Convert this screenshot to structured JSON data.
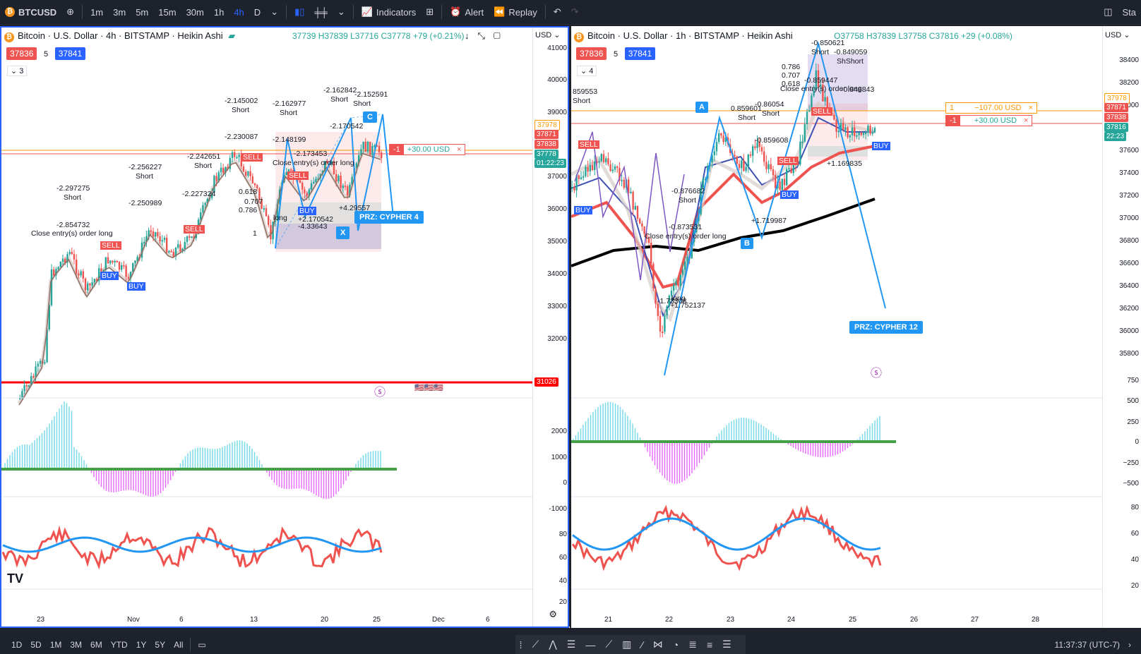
{
  "topbar": {
    "symbol": "BTCUSD",
    "intervals": [
      "1m",
      "3m",
      "5m",
      "15m",
      "30m",
      "1h",
      "4h",
      "D"
    ],
    "active_interval": "4h",
    "indicators_label": "Indicators",
    "alert_label": "Alert",
    "replay_label": "Replay",
    "right_label": "Sta"
  },
  "left_chart": {
    "title": "Bitcoin · U.S. Dollar · 4h · BITSTAMP · Heikin Ashi",
    "ohlc": "37739 H37839 L37716 C37778 +79 (+0.21%)",
    "sell_price": "37836",
    "spread": "5",
    "buy_price": "37841",
    "indicator_count": "3",
    "currency": "USD",
    "price_ticks": [
      "41000",
      "40000",
      "39000",
      "37000",
      "36000",
      "35000",
      "34000",
      "33000",
      "32000"
    ],
    "price_tag_a": "37978",
    "price_tag_b": "37871",
    "price_tag_c": "37838",
    "price_tag_last": "37778",
    "price_tag_time": "01:22:23",
    "support_tag": "31026",
    "order_qty": "-1",
    "order_pnl": "+30.00 USD",
    "prz": "PRZ: CYPHER 4",
    "macd_ticks": [
      "2000",
      "1000",
      "0",
      "-1000"
    ],
    "rsi_ticks": [
      "80",
      "60",
      "40",
      "20"
    ],
    "x_labels": [
      "23",
      "Nov",
      "6",
      "13",
      "20",
      "25",
      "Dec",
      "6"
    ],
    "labels": [
      "-2.297275",
      "Short",
      "-2.854732",
      "Close entry(s) order long",
      "-2.256227",
      "Short",
      "-2.250989",
      "-2.145002",
      "Short",
      "-2.230087",
      "-2.162977",
      "Short",
      "-2.148199",
      "-2.162842",
      "Short",
      "-2.152591",
      "Short",
      "-2.242651",
      "Short",
      "-2.227324",
      "-2.170542",
      "-2.173453",
      "Close entry(s) order long",
      "long",
      "-4.33643",
      "+2.170542",
      "+4.29557",
      "C",
      "X",
      "0.618",
      "0.786",
      "0.707",
      "1",
      "SELL",
      "BUY"
    ]
  },
  "right_chart": {
    "title": "Bitcoin · U.S. Dollar · 1h · BITSTAMP · Heikin Ashi",
    "ohlc": "O37758 H37839 L37758 C37816 +29 (+0.08%)",
    "sell_price": "37836",
    "spread": "5",
    "buy_price": "37841",
    "indicator_count": "4",
    "currency": "USD",
    "price_ticks": [
      "38400",
      "38200",
      "38000",
      "37600",
      "37400",
      "37200",
      "37000",
      "36800",
      "36600",
      "36400",
      "36200",
      "36000",
      "35800"
    ],
    "price_tag_a": "37978",
    "price_tag_b": "37871",
    "price_tag_c": "37838",
    "price_tag_last": "37816",
    "price_tag_time": "22:23",
    "order1_qty": "1",
    "order1_pnl": "−107.00 USD",
    "order2_qty": "-1",
    "order2_pnl": "+30.00 USD",
    "prz": "PRZ: CYPHER 12",
    "macd_ticks": [
      "750",
      "500",
      "250",
      "0",
      "−250",
      "−500"
    ],
    "rsi_ticks": [
      "80",
      "60",
      "40",
      "20"
    ],
    "x_labels": [
      "21",
      "22",
      "23",
      "24",
      "25",
      "26",
      "27",
      "28"
    ],
    "labels": [
      "859553",
      "Short",
      "0.859601",
      "Short",
      "-0.86054",
      "Short",
      "-0.859608",
      "-0.876682",
      "Short",
      "-0.873531",
      "Close entry(s) order long",
      "-1.73308",
      "+1.752137",
      "long",
      "-0.850621",
      "Short",
      "-0.849059",
      "ShShort",
      "0.786",
      "0.707",
      "0.618",
      "-0.859447",
      "Close entry(s) order long",
      "-0.848843",
      "+1.169835",
      "+1.719987",
      "A",
      "B",
      "SELL",
      "BUY"
    ]
  },
  "bottombar": {
    "ranges": [
      "1D",
      "5D",
      "1M",
      "3M",
      "6M",
      "YTD",
      "1Y",
      "5Y",
      "All"
    ],
    "time": "11:37:37 (UTC-7)"
  },
  "colors": {
    "accent": "#2962ff",
    "up": "#26a69a",
    "down": "#ef5350",
    "pattern": "#2196f3"
  }
}
